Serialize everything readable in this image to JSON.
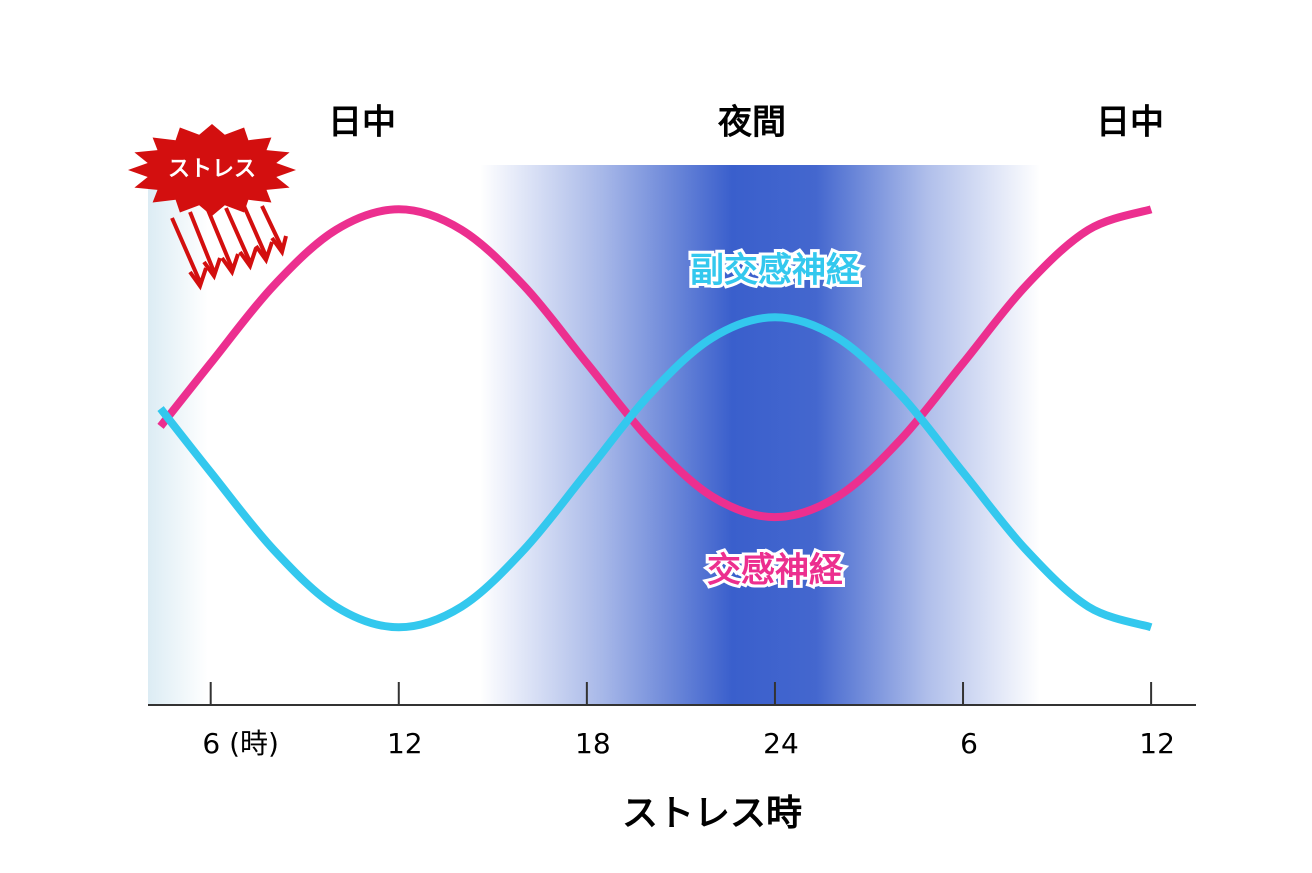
{
  "chart_data": {
    "type": "line",
    "x_label": "ストレス時",
    "annotations": [
      "日中",
      "夜間",
      "日中",
      "ストレス"
    ],
    "x": [
      4.4,
      6,
      8,
      10,
      12,
      14,
      16,
      18,
      20,
      22,
      24,
      26,
      28,
      30,
      32,
      34,
      36
    ],
    "series": [
      {
        "name": "交感神経",
        "color": "#ec2f8f",
        "values": [
          5.16,
          6.33,
          7.76,
          8.8,
          9.18,
          8.8,
          7.76,
          6.33,
          4.91,
          3.86,
          3.48,
          3.86,
          4.91,
          6.33,
          7.76,
          8.8,
          9.18
        ]
      },
      {
        "name": "副交感神経",
        "color": "#33c8ee",
        "values": [
          5.49,
          4.31,
          2.88,
          1.82,
          1.44,
          1.82,
          2.88,
          4.31,
          5.75,
          6.8,
          7.18,
          6.8,
          5.75,
          4.31,
          2.88,
          1.82,
          1.44
        ]
      }
    ],
    "xlim": [
      4,
      37.4
    ],
    "xticks": [
      {
        "value": 6,
        "label": "6 (時)"
      },
      12,
      18,
      24,
      {
        "value": 30,
        "label": "6"
      },
      {
        "value": 36,
        "label": "12"
      }
    ],
    "ylim": [
      0,
      10
    ]
  }
}
